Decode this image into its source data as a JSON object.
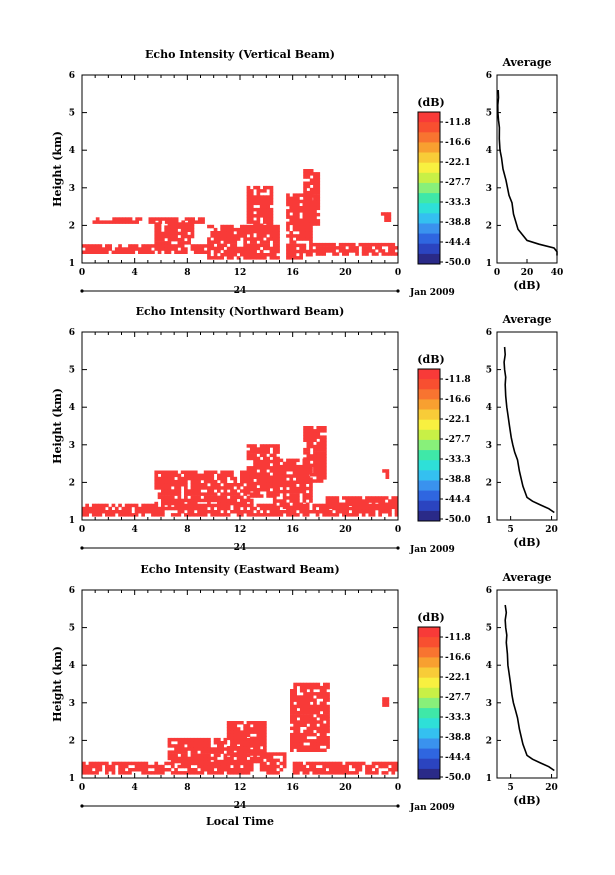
{
  "x_label": "Local Time",
  "date_label": "Jan 2009",
  "colorbar": {
    "unit": "(dB)",
    "ticks": [
      "-11.8",
      "-16.6",
      "-22.1",
      "-27.7",
      "-33.3",
      "-38.8",
      "-44.4",
      "-50.0"
    ],
    "colors": [
      "#2a2a88",
      "#2b44c0",
      "#2f66e0",
      "#3a92ee",
      "#34c0f0",
      "#2ee0d8",
      "#3fe8a8",
      "#88f07a",
      "#c8f046",
      "#f8f040",
      "#f8cc38",
      "#f8a030",
      "#f87430",
      "#f84f30",
      "#f83a38"
    ]
  },
  "chart_data": [
    {
      "type": "heatmap",
      "title": "Echo Intensity (Vertical Beam)",
      "xlabel": "",
      "ylabel": "Height (km)",
      "xlim": [
        0,
        24
      ],
      "ylim": [
        1,
        6
      ],
      "x_ticks": [
        "0",
        "4",
        "8",
        "12",
        "16",
        "20",
        "0"
      ],
      "day_label": "24",
      "y_ticks": [
        "1",
        "2",
        "3",
        "4",
        "5",
        "6"
      ],
      "color": "#f83a38",
      "approx_echo_regions_hours_km": [
        {
          "t": [
            0,
            9.5
          ],
          "h": [
            1.25,
            1.45
          ]
        },
        {
          "t": [
            0.8,
            9.3
          ],
          "h": [
            2.05,
            2.2
          ]
        },
        {
          "t": [
            5.5,
            8.5
          ],
          "h": [
            1.5,
            2.0
          ]
        },
        {
          "t": [
            9.5,
            15
          ],
          "h": [
            1.1,
            2.0
          ]
        },
        {
          "t": [
            12.5,
            14.5
          ],
          "h": [
            1.8,
            3.0
          ]
        },
        {
          "t": [
            15.5,
            17.5
          ],
          "h": [
            1.1,
            2.8
          ]
        },
        {
          "t": [
            16.8,
            18.0
          ],
          "h": [
            2.0,
            3.5
          ]
        },
        {
          "t": [
            17.5,
            24
          ],
          "h": [
            1.2,
            1.45
          ]
        },
        {
          "t": [
            22.7,
            23.3
          ],
          "h": [
            2.1,
            2.3
          ]
        }
      ],
      "average": {
        "title": "Average",
        "xlabel": "(dB)",
        "x_ticks": [
          "0",
          "20",
          "40"
        ],
        "xlim": [
          0,
          40
        ],
        "y_ticks": [
          "1",
          "2",
          "3",
          "4",
          "5",
          "6"
        ],
        "x": [
          52,
          48,
          38,
          28,
          20,
          14,
          11,
          10,
          8,
          7,
          6,
          4,
          3,
          2,
          1.5,
          1.6,
          1.0,
          0.6,
          0.5,
          1.0,
          0.8
        ],
        "y": [
          1.2,
          1.3,
          1.4,
          1.5,
          1.6,
          1.9,
          2.3,
          2.6,
          2.8,
          3.0,
          3.2,
          3.5,
          3.8,
          4.0,
          4.3,
          4.6,
          4.8,
          5.0,
          5.2,
          5.4,
          5.6
        ]
      }
    },
    {
      "type": "heatmap",
      "title": "Echo Intensity (Northward Beam)",
      "xlabel": "",
      "ylabel": "Height (km)",
      "xlim": [
        0,
        24
      ],
      "ylim": [
        1,
        6
      ],
      "x_ticks": [
        "0",
        "4",
        "8",
        "12",
        "16",
        "20",
        "0"
      ],
      "day_label": "24",
      "y_ticks": [
        "1",
        "2",
        "3",
        "4",
        "5",
        "6"
      ],
      "color": "#f83a38",
      "approx_echo_regions_hours_km": [
        {
          "t": [
            0,
            24
          ],
          "h": [
            1.1,
            1.4
          ]
        },
        {
          "t": [
            5.5,
            13
          ],
          "h": [
            1.4,
            2.3
          ]
        },
        {
          "t": [
            12.5,
            15
          ],
          "h": [
            1.6,
            3.0
          ]
        },
        {
          "t": [
            14.5,
            17.5
          ],
          "h": [
            1.3,
            2.6
          ]
        },
        {
          "t": [
            16.8,
            18.5
          ],
          "h": [
            2.0,
            3.5
          ]
        },
        {
          "t": [
            18.5,
            24
          ],
          "h": [
            1.3,
            1.6
          ]
        },
        {
          "t": [
            22.8,
            23.2
          ],
          "h": [
            2.1,
            2.3
          ]
        }
      ],
      "average": {
        "title": "Average",
        "xlabel": "(dB)",
        "x_ticks": [
          "5",
          "20"
        ],
        "xlim": [
          0,
          22
        ],
        "y_ticks": [
          "1",
          "2",
          "3",
          "4",
          "5",
          "6"
        ],
        "x": [
          21,
          19,
          16,
          13,
          11,
          9.5,
          8.2,
          7.5,
          6.5,
          5.8,
          5.2,
          4.6,
          4.0,
          3.6,
          3.2,
          3.0,
          3.2,
          2.8,
          2.6,
          3.0,
          2.8
        ],
        "y": [
          1.2,
          1.3,
          1.4,
          1.5,
          1.6,
          1.9,
          2.3,
          2.6,
          2.8,
          3.0,
          3.2,
          3.5,
          3.8,
          4.0,
          4.3,
          4.6,
          4.8,
          5.0,
          5.2,
          5.4,
          5.6
        ]
      }
    },
    {
      "type": "heatmap",
      "title": "Echo Intensity (Eastward Beam)",
      "xlabel": "Local Time",
      "ylabel": "Height (km)",
      "xlim": [
        0,
        24
      ],
      "ylim": [
        1,
        6
      ],
      "x_ticks": [
        "0",
        "4",
        "8",
        "12",
        "16",
        "20",
        "0"
      ],
      "day_label": "24",
      "y_ticks": [
        "1",
        "2",
        "3",
        "4",
        "5",
        "6"
      ],
      "color": "#f83a38",
      "approx_echo_regions_hours_km": [
        {
          "t": [
            0,
            13
          ],
          "h": [
            1.1,
            1.4
          ]
        },
        {
          "t": [
            6.5,
            13.5
          ],
          "h": [
            1.4,
            2.0
          ]
        },
        {
          "t": [
            11,
            14
          ],
          "h": [
            1.6,
            2.5
          ]
        },
        {
          "t": [
            13.5,
            15.5
          ],
          "h": [
            1.1,
            1.6
          ]
        },
        {
          "t": [
            15.8,
            18.8
          ],
          "h": [
            1.7,
            3.5
          ]
        },
        {
          "t": [
            16.0,
            24
          ],
          "h": [
            1.1,
            1.4
          ]
        },
        {
          "t": [
            22.8,
            23.3
          ],
          "h": [
            2.9,
            3.1
          ]
        }
      ],
      "average": {
        "title": "Average",
        "xlabel": "(dB)",
        "x_ticks": [
          "5",
          "20"
        ],
        "xlim": [
          0,
          22
        ],
        "y_ticks": [
          "1",
          "2",
          "3",
          "4",
          "5",
          "6"
        ],
        "x": [
          21,
          19,
          16,
          13,
          11,
          9.5,
          8.2,
          7.5,
          6.8,
          6.0,
          5.5,
          5.0,
          4.4,
          4.0,
          3.8,
          3.4,
          3.6,
          3.2,
          3.0,
          3.4,
          3.0
        ],
        "y": [
          1.2,
          1.3,
          1.4,
          1.5,
          1.6,
          1.9,
          2.3,
          2.6,
          2.8,
          3.0,
          3.2,
          3.5,
          3.8,
          4.0,
          4.3,
          4.6,
          4.8,
          5.0,
          5.2,
          5.4,
          5.6
        ]
      }
    }
  ]
}
